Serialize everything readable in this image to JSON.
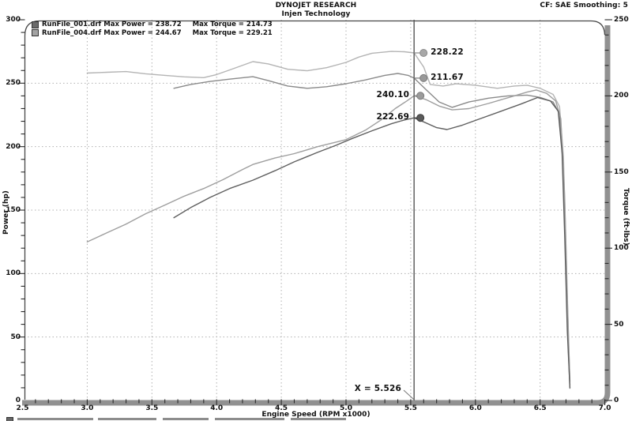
{
  "header": {
    "title": "DYNOJET RESEARCH",
    "subtitle": "Injen Technology",
    "corner_info": "CF: SAE  Smoothing: 5"
  },
  "legend": {
    "items": [
      {
        "file": "RunFile_001.drf",
        "power": "Max Power = 238.72",
        "torque": "Max Torque = 214.73",
        "color": "#6b6b6b"
      },
      {
        "file": "RunFile_004.drf",
        "power": "Max Power = 244.67",
        "torque": "Max Torque = 229.21",
        "color": "#a3a3a3"
      }
    ]
  },
  "cursor": {
    "x": 5.526,
    "label": "X = 5.526"
  },
  "markers": [
    {
      "label": "228.22",
      "axis": "torque",
      "value": 228.22,
      "side": "right",
      "color": "#a8a8a8",
      "edge": "#8a8a8a"
    },
    {
      "label": "211.67",
      "axis": "torque",
      "value": 211.67,
      "side": "right",
      "color": "#999999",
      "edge": "#7a7a7a"
    },
    {
      "label": "240.10",
      "axis": "power",
      "value": 240.1,
      "side": "left",
      "color": "#9b9b9b",
      "edge": "#7a7a7a"
    },
    {
      "label": "222.69",
      "axis": "power",
      "value": 222.69,
      "side": "left",
      "color": "#5a5a5a",
      "edge": "#3d3d3d"
    }
  ],
  "colors": {
    "cursor": "#555555",
    "grid": "#b0b0b0",
    "frame_dark": "#474747",
    "frame_gray": "#919191",
    "tick": "#2a2a2a"
  },
  "chart_data": {
    "type": "line",
    "title": "DYNOJET RESEARCH - Injen Technology",
    "xlabel": "Engine Speed (RPM x1000)",
    "ylabel_left": "Power (hp)",
    "ylabel_right": "Torque (ft-lbs)",
    "x_range": [
      2.5,
      7.0
    ],
    "power_range": [
      0,
      300
    ],
    "torque_range": [
      0,
      250
    ],
    "x_major_ticks": [
      2.5,
      3.0,
      3.5,
      4.0,
      4.5,
      5.0,
      5.5,
      6.0,
      6.5,
      7.0
    ],
    "power_major_ticks": [
      0,
      50,
      100,
      150,
      200,
      250,
      300
    ],
    "torque_major_ticks": [
      0,
      50,
      100,
      150,
      200,
      250
    ],
    "x_minor_step": 0.1,
    "y_minor_step": 10,
    "grid": "dotted",
    "cursor_x": 5.526,
    "cursor_values": {
      "run001_power": 222.69,
      "run001_torque": 211.67,
      "run004_power": 240.1,
      "run004_torque": 228.22
    },
    "series": [
      {
        "id": "run004-torque",
        "name": "RunFile_004.drf Torque",
        "axis": "torque",
        "color": "#b4b4b4",
        "max": 229.21,
        "points": [
          [
            3.0,
            215
          ],
          [
            3.15,
            215.5
          ],
          [
            3.3,
            216
          ],
          [
            3.45,
            214.5
          ],
          [
            3.6,
            213.5
          ],
          [
            3.75,
            212.5
          ],
          [
            3.9,
            212
          ],
          [
            4.0,
            214
          ],
          [
            4.1,
            217
          ],
          [
            4.28,
            222.5
          ],
          [
            4.4,
            221
          ],
          [
            4.55,
            217.5
          ],
          [
            4.7,
            216.5
          ],
          [
            4.85,
            218.5
          ],
          [
            5.0,
            222
          ],
          [
            5.1,
            225.5
          ],
          [
            5.2,
            228
          ],
          [
            5.35,
            229.2
          ],
          [
            5.45,
            229
          ],
          [
            5.526,
            228.22
          ],
          [
            5.6,
            219
          ],
          [
            5.65,
            207.5
          ],
          [
            5.75,
            206.5
          ],
          [
            5.85,
            208
          ],
          [
            6.0,
            207
          ],
          [
            6.17,
            205
          ],
          [
            6.3,
            206.5
          ],
          [
            6.4,
            207
          ],
          [
            6.5,
            205
          ],
          [
            6.6,
            201
          ],
          [
            6.65,
            193
          ],
          [
            6.68,
            160
          ],
          [
            6.7,
            100
          ],
          [
            6.72,
            40
          ],
          [
            6.73,
            10
          ]
        ]
      },
      {
        "id": "run001-torque",
        "name": "RunFile_001.drf Torque",
        "axis": "torque",
        "color": "#8a8a8a",
        "max": 214.73,
        "points": [
          [
            3.67,
            205
          ],
          [
            3.8,
            207.5
          ],
          [
            3.95,
            209.5
          ],
          [
            4.1,
            211
          ],
          [
            4.28,
            212.6
          ],
          [
            4.4,
            210
          ],
          [
            4.55,
            206.5
          ],
          [
            4.7,
            205
          ],
          [
            4.85,
            206
          ],
          [
            5.0,
            208
          ],
          [
            5.15,
            210.5
          ],
          [
            5.3,
            213.5
          ],
          [
            5.4,
            214.73
          ],
          [
            5.48,
            213.5
          ],
          [
            5.526,
            211.67
          ],
          [
            5.62,
            204
          ],
          [
            5.72,
            196
          ],
          [
            5.82,
            192.5
          ],
          [
            5.95,
            196
          ],
          [
            6.1,
            198.5
          ],
          [
            6.25,
            200
          ],
          [
            6.4,
            200.5
          ],
          [
            6.5,
            199
          ],
          [
            6.6,
            196
          ],
          [
            6.65,
            188
          ],
          [
            6.68,
            150
          ],
          [
            6.7,
            85
          ],
          [
            6.72,
            30
          ],
          [
            6.73,
            8
          ]
        ]
      },
      {
        "id": "run004-power",
        "name": "RunFile_004.drf Power",
        "axis": "power",
        "color": "#9e9e9e",
        "max": 244.67,
        "points": [
          [
            3.0,
            125
          ],
          [
            3.15,
            132
          ],
          [
            3.3,
            139
          ],
          [
            3.45,
            147
          ],
          [
            3.6,
            154
          ],
          [
            3.75,
            161
          ],
          [
            3.9,
            167
          ],
          [
            4.05,
            174
          ],
          [
            4.2,
            182
          ],
          [
            4.28,
            186
          ],
          [
            4.45,
            191
          ],
          [
            4.6,
            194.5
          ],
          [
            4.78,
            200
          ],
          [
            5.0,
            205.5
          ],
          [
            5.15,
            213
          ],
          [
            5.27,
            221
          ],
          [
            5.38,
            230
          ],
          [
            5.47,
            236
          ],
          [
            5.526,
            240.1
          ],
          [
            5.62,
            237
          ],
          [
            5.72,
            232
          ],
          [
            5.82,
            229
          ],
          [
            5.95,
            230
          ],
          [
            6.1,
            234
          ],
          [
            6.25,
            238.5
          ],
          [
            6.4,
            243
          ],
          [
            6.47,
            244.67
          ],
          [
            6.55,
            242
          ],
          [
            6.62,
            236
          ],
          [
            6.66,
            222
          ],
          [
            6.69,
            160
          ],
          [
            6.71,
            80
          ],
          [
            6.73,
            15
          ]
        ]
      },
      {
        "id": "run001-power",
        "name": "RunFile_001.drf Power",
        "axis": "power",
        "color": "#5f5f5f",
        "max": 238.72,
        "points": [
          [
            3.67,
            144
          ],
          [
            3.8,
            152
          ],
          [
            3.95,
            160
          ],
          [
            4.1,
            167
          ],
          [
            4.28,
            173.6
          ],
          [
            4.45,
            181
          ],
          [
            4.6,
            188
          ],
          [
            4.78,
            195.5
          ],
          [
            4.92,
            201
          ],
          [
            5.05,
            206.5
          ],
          [
            5.2,
            212.5
          ],
          [
            5.35,
            218
          ],
          [
            5.45,
            221
          ],
          [
            5.526,
            222.69
          ],
          [
            5.6,
            219.5
          ],
          [
            5.7,
            215
          ],
          [
            5.78,
            213.5
          ],
          [
            5.9,
            217
          ],
          [
            6.05,
            222.5
          ],
          [
            6.2,
            228
          ],
          [
            6.35,
            233.5
          ],
          [
            6.48,
            238.72
          ],
          [
            6.58,
            236
          ],
          [
            6.64,
            228
          ],
          [
            6.67,
            195
          ],
          [
            6.69,
            130
          ],
          [
            6.71,
            55
          ],
          [
            6.73,
            10
          ]
        ]
      }
    ]
  },
  "axes_titles": {
    "x": "Engine Speed (RPM x1000)",
    "left": "Power (hp)",
    "right": "Torque (ft-lbs)"
  }
}
